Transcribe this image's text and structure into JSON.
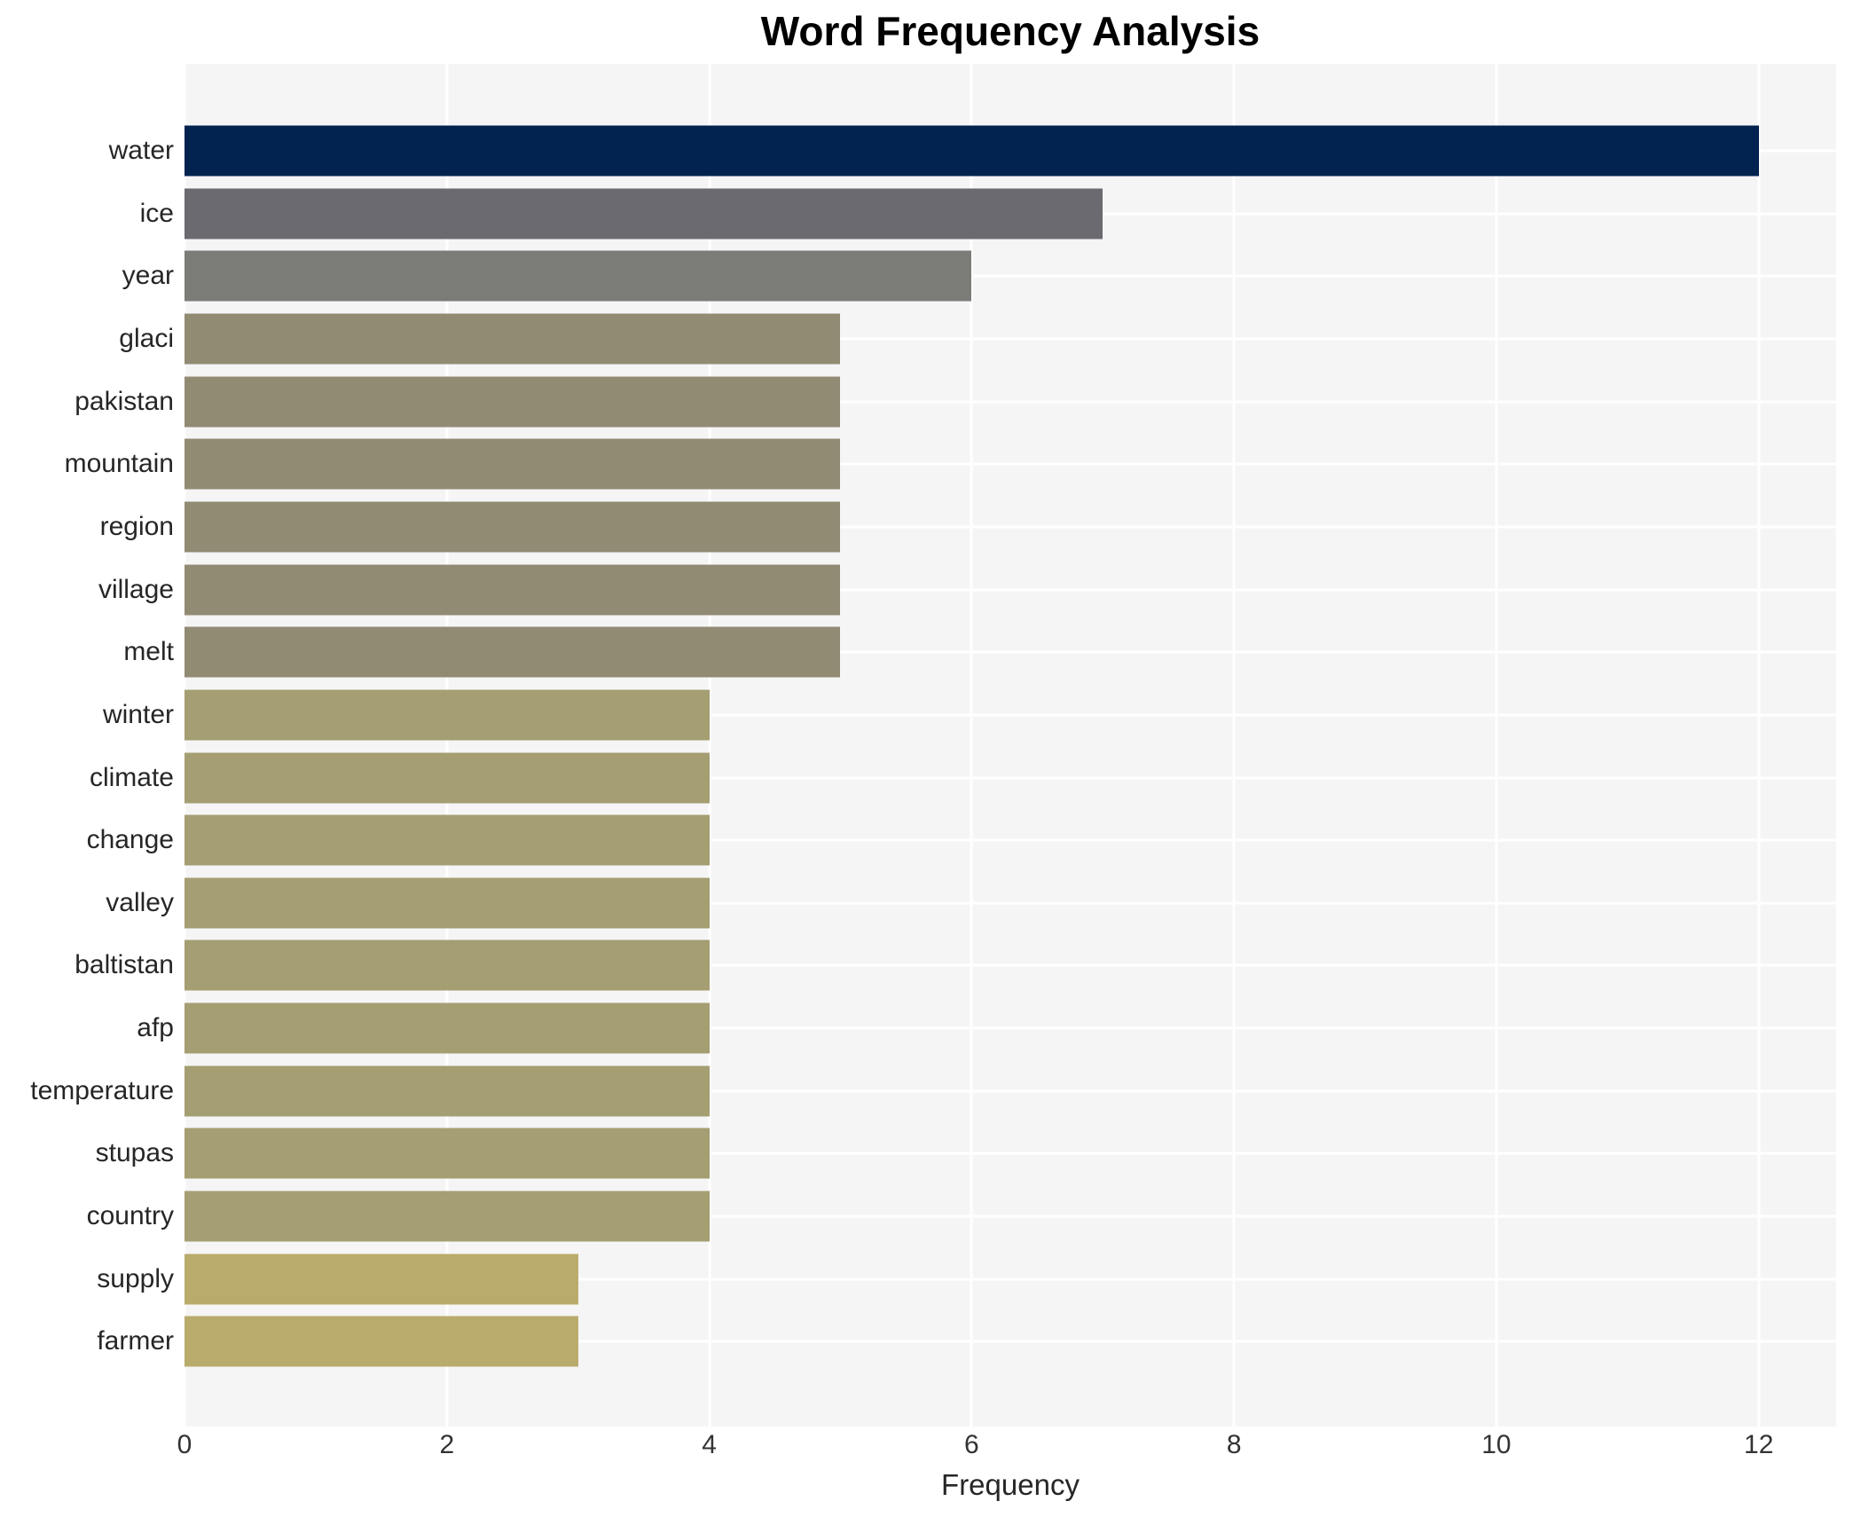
{
  "chart_data": {
    "type": "bar",
    "orientation": "horizontal",
    "title": "Word Frequency Analysis",
    "xlabel": "Frequency",
    "ylabel": "",
    "categories": [
      "water",
      "ice",
      "year",
      "glaci",
      "pakistan",
      "mountain",
      "region",
      "village",
      "melt",
      "winter",
      "climate",
      "change",
      "valley",
      "baltistan",
      "afp",
      "temperature",
      "stupas",
      "country",
      "supply",
      "farmer"
    ],
    "values": [
      12,
      7,
      6,
      5,
      5,
      5,
      5,
      5,
      5,
      4,
      4,
      4,
      4,
      4,
      4,
      4,
      4,
      4,
      3,
      3
    ],
    "bar_colors": [
      "#022350",
      "#6a6a70",
      "#7b7b78",
      "#918b74",
      "#918b74",
      "#918b74",
      "#918b74",
      "#918b74",
      "#918b74",
      "#a59e73",
      "#a59e73",
      "#a59e73",
      "#a59e73",
      "#a59e73",
      "#a59e73",
      "#a59e73",
      "#a59e73",
      "#a59e73",
      "#b9ab6b",
      "#b9ab6b"
    ],
    "xticks": [
      "0",
      "2",
      "4",
      "6",
      "8",
      "10",
      "12"
    ],
    "xlim": [
      0,
      12.59
    ],
    "grid": true,
    "legend": "none",
    "panel_background": "#f5f5f6",
    "gridline_color": "#ffffff",
    "title_color": "#000000",
    "label_color": "#262626",
    "tick_color": "#333333"
  }
}
